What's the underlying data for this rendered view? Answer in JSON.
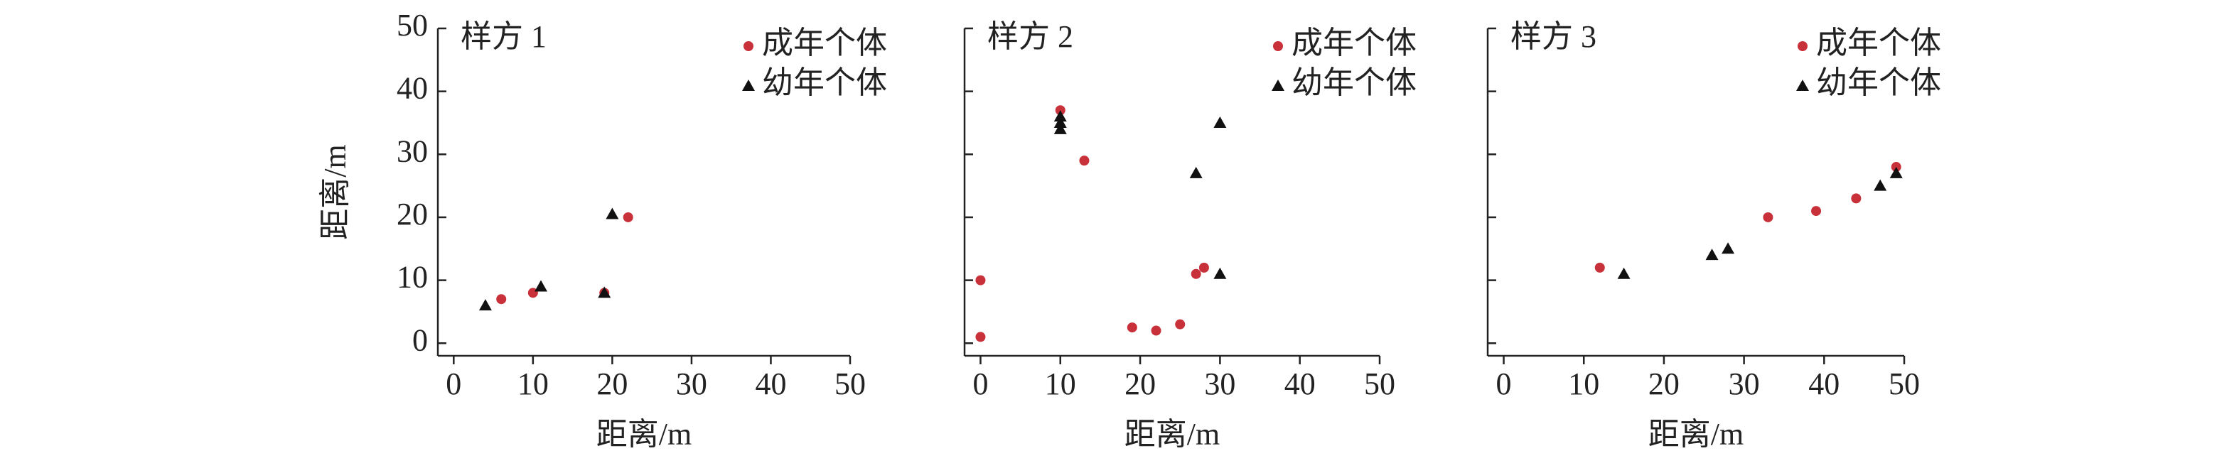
{
  "chart_data": [
    {
      "type": "scatter",
      "title": "样方 1",
      "xlabel": "距离/m",
      "ylabel": "距离/m",
      "xlim": [
        -2,
        50
      ],
      "ylim": [
        -2,
        50
      ],
      "xticks": [
        0,
        10,
        20,
        30,
        40,
        50
      ],
      "yticks": [
        0,
        10,
        20,
        30,
        40,
        50
      ],
      "show_ytick_labels": true,
      "series": [
        {
          "name": "成年个体",
          "color": "#c8303a",
          "marker": "circle",
          "x": [
            6,
            10,
            19,
            22
          ],
          "values": [
            7,
            8,
            8,
            20
          ]
        },
        {
          "name": "幼年个体",
          "color": "#111111",
          "marker": "triangle",
          "x": [
            4,
            11,
            19,
            20
          ],
          "values": [
            6,
            9,
            8,
            20.5
          ]
        }
      ]
    },
    {
      "type": "scatter",
      "title": "样方 2",
      "xlabel": "距离/m",
      "xlim": [
        -2,
        50
      ],
      "ylim": [
        -2,
        50
      ],
      "xticks": [
        0,
        10,
        20,
        30,
        40,
        50
      ],
      "yticks": [
        0,
        10,
        20,
        30,
        40,
        50
      ],
      "show_ytick_labels": false,
      "series": [
        {
          "name": "成年个体",
          "color": "#c8303a",
          "marker": "circle",
          "x": [
            0,
            0,
            10,
            13,
            19,
            22,
            25,
            27,
            28
          ],
          "values": [
            10,
            1,
            37,
            29,
            2.5,
            2,
            3,
            11,
            12
          ]
        },
        {
          "name": "幼年个体",
          "color": "#111111",
          "marker": "triangle",
          "x": [
            10,
            10,
            10,
            27,
            30,
            30
          ],
          "values": [
            34,
            35,
            36,
            27,
            35,
            11
          ]
        }
      ]
    },
    {
      "type": "scatter",
      "title": "样方 3",
      "xlabel": "距离/m",
      "xlim": [
        -2,
        50
      ],
      "ylim": [
        -2,
        50
      ],
      "xticks": [
        0,
        10,
        20,
        30,
        40,
        50
      ],
      "yticks": [
        0,
        10,
        20,
        30,
        40,
        50
      ],
      "show_ytick_labels": false,
      "series": [
        {
          "name": "成年个体",
          "color": "#c8303a",
          "marker": "circle",
          "x": [
            12,
            33,
            39,
            44,
            49
          ],
          "values": [
            12,
            20,
            21,
            23,
            28
          ]
        },
        {
          "name": "幼年个体",
          "color": "#111111",
          "marker": "triangle",
          "x": [
            15,
            26,
            28,
            47,
            49
          ],
          "values": [
            11,
            14,
            15,
            25,
            27
          ]
        }
      ]
    }
  ]
}
